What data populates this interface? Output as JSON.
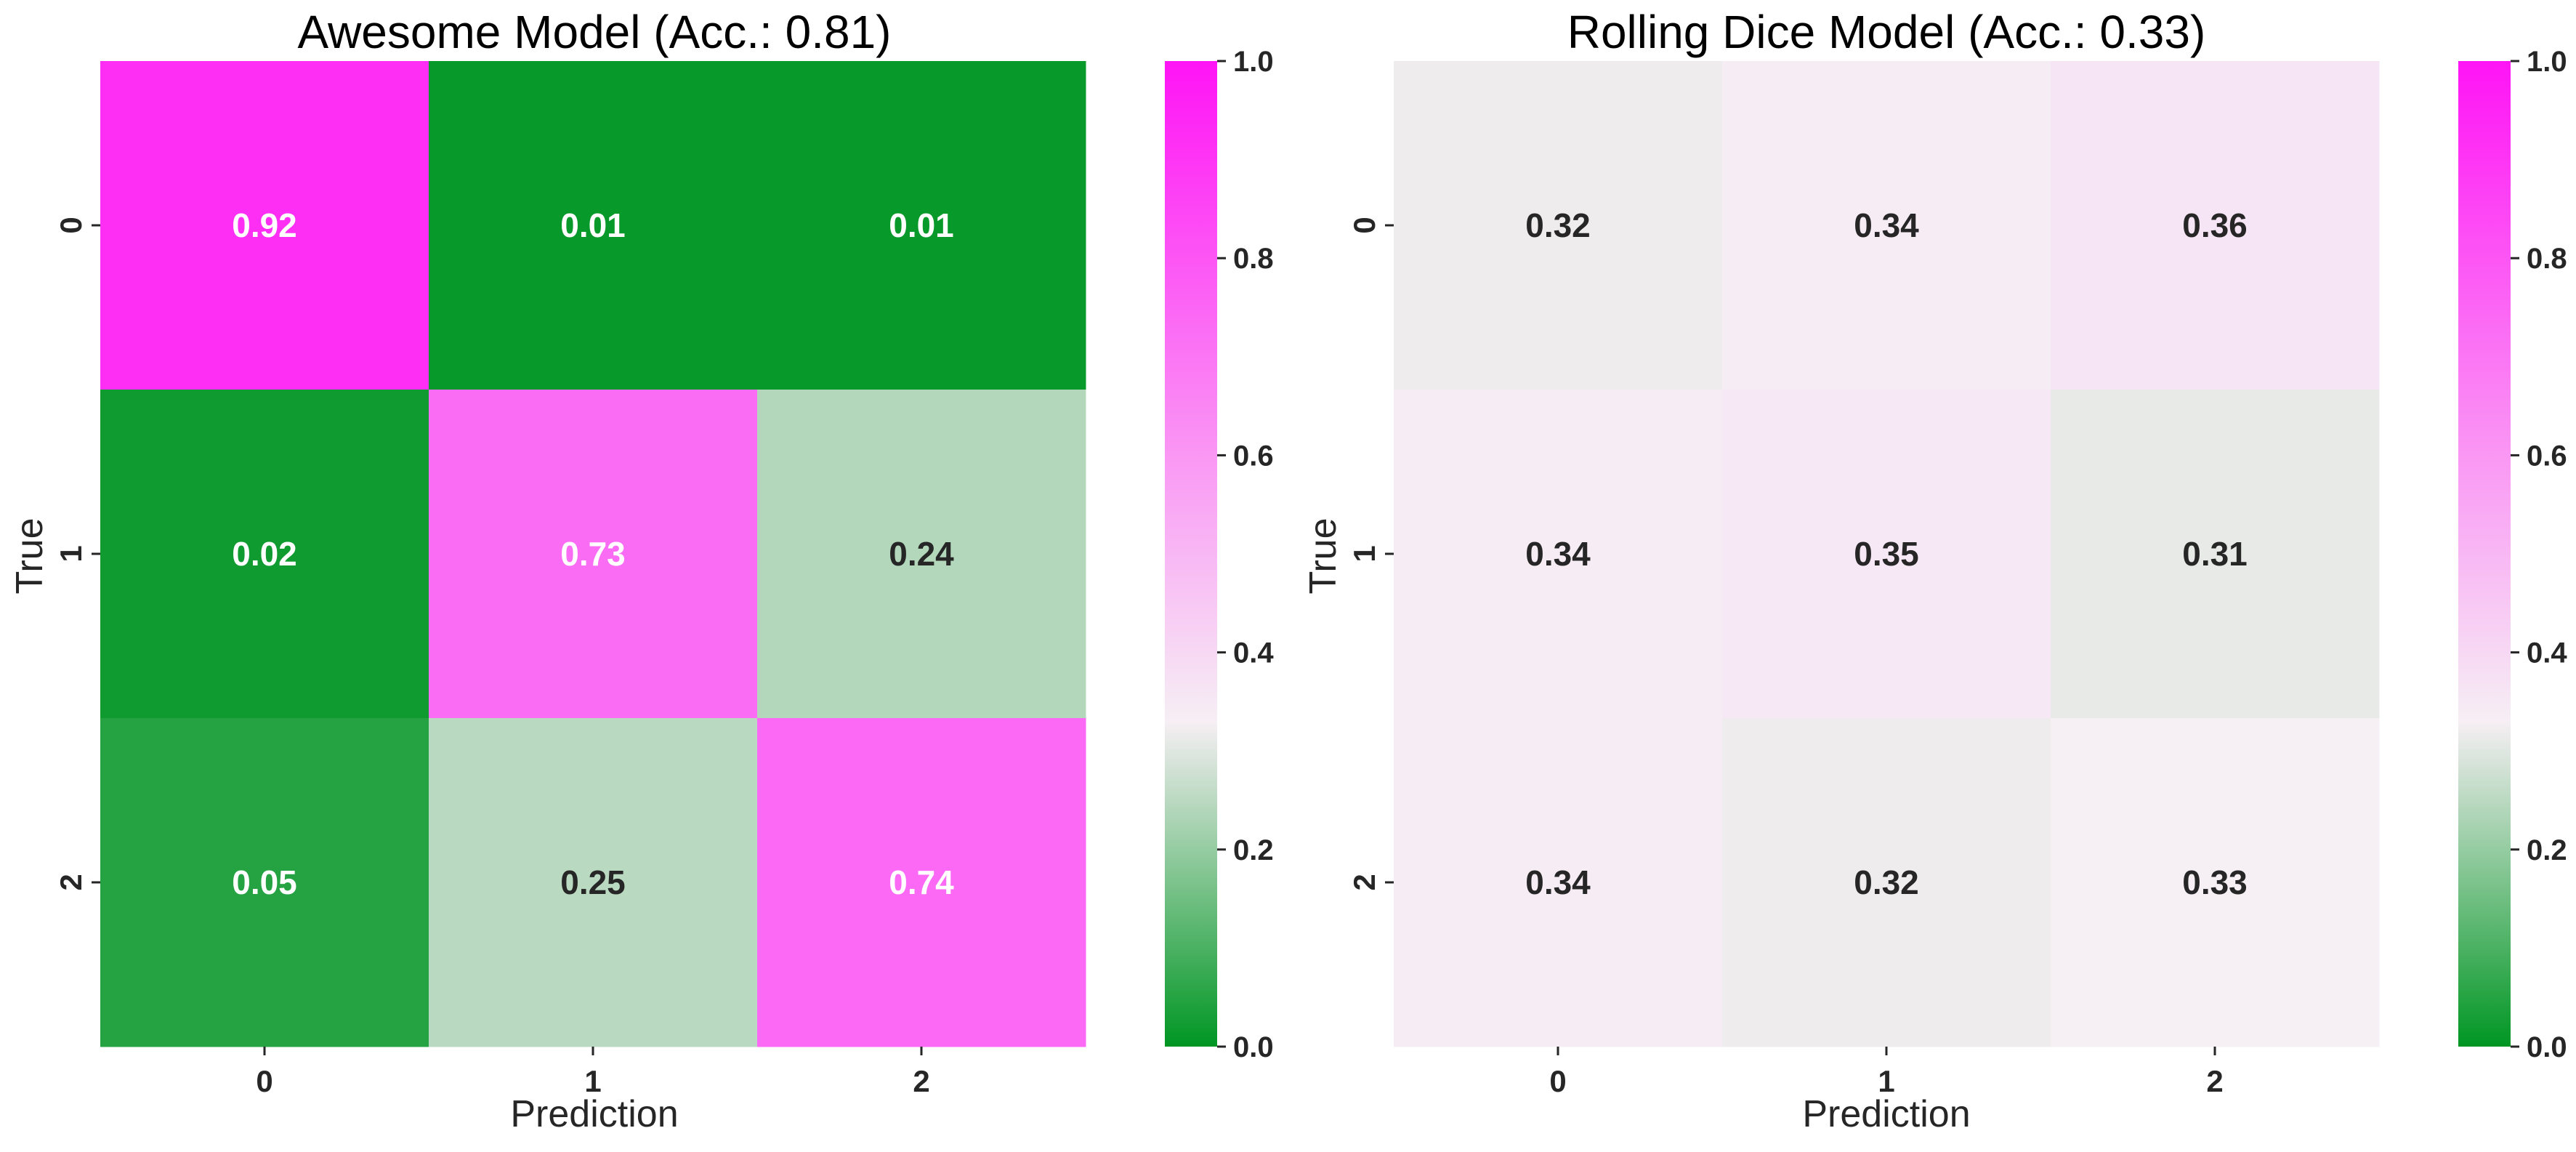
{
  "chart_data": [
    {
      "type": "heatmap",
      "title": "Awesome Model (Acc.: 0.81)",
      "xlabel": "Prediction",
      "ylabel": "True",
      "x_categories": [
        "0",
        "1",
        "2"
      ],
      "y_categories": [
        "0",
        "1",
        "2"
      ],
      "values": [
        [
          0.92,
          0.01,
          0.01
        ],
        [
          0.02,
          0.73,
          0.24
        ],
        [
          0.05,
          0.25,
          0.74
        ]
      ],
      "value_labels": [
        [
          "0.92",
          "0.01",
          "0.01"
        ],
        [
          "0.02",
          "0.73",
          "0.24"
        ],
        [
          "0.05",
          "0.25",
          "0.74"
        ]
      ],
      "colorbar": {
        "range": [
          0.0,
          1.0
        ],
        "ticks": [
          "0.0",
          "0.2",
          "0.4",
          "0.6",
          "0.8",
          "1.0"
        ]
      }
    },
    {
      "type": "heatmap",
      "title": "Rolling Dice Model (Acc.: 0.33)",
      "xlabel": "Prediction",
      "ylabel": "True",
      "x_categories": [
        "0",
        "1",
        "2"
      ],
      "y_categories": [
        "0",
        "1",
        "2"
      ],
      "values": [
        [
          0.32,
          0.34,
          0.36
        ],
        [
          0.34,
          0.35,
          0.31
        ],
        [
          0.34,
          0.32,
          0.33
        ]
      ],
      "value_labels": [
        [
          "0.32",
          "0.34",
          "0.36"
        ],
        [
          "0.34",
          "0.35",
          "0.31"
        ],
        [
          "0.34",
          "0.32",
          "0.33"
        ]
      ],
      "colorbar": {
        "range": [
          0.0,
          1.0
        ],
        "ticks": [
          "0.0",
          "0.2",
          "0.4",
          "0.6",
          "0.8",
          "1.0"
        ]
      }
    }
  ],
  "colormap": {
    "low": "#009623",
    "mid": "#f6eff4",
    "high": "#ff14f5",
    "center_value": 0.33
  },
  "text_colors": {
    "dark": "#262626",
    "light": "#ffffff"
  }
}
